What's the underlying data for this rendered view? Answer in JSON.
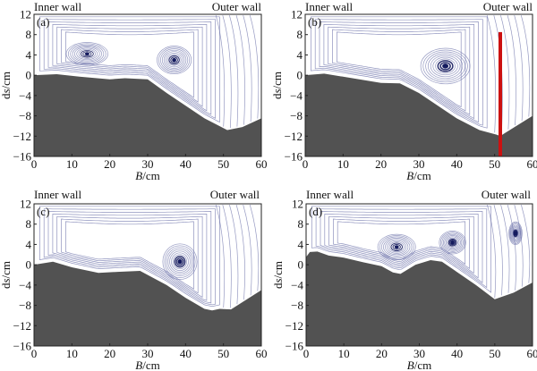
{
  "chart_data": [
    {
      "type": "streamline",
      "panel_label": "(a)",
      "inner_wall_label": "Inner wall",
      "outer_wall_label": "Outer wall",
      "xlabel_italic": "B",
      "xlabel_unit": "/cm",
      "ylabel_italic": "s",
      "ylabel_prefix": "d",
      "ylabel_unit": "/cm",
      "xlim": [
        0,
        60
      ],
      "ylim": [
        -16,
        12
      ],
      "xticks": [
        "0",
        "10",
        "20",
        "30",
        "40",
        "50",
        "60"
      ],
      "yticks": [
        "12",
        "8",
        "4",
        "0",
        "−4",
        "−8",
        "−12",
        "−16"
      ],
      "bed_profile": [
        [
          0,
          0
        ],
        [
          6,
          0.2
        ],
        [
          12,
          -0.3
        ],
        [
          20,
          -0.8
        ],
        [
          24,
          -0.6
        ],
        [
          30,
          -0.8
        ],
        [
          35,
          -3.5
        ],
        [
          45,
          -8.5
        ],
        [
          51,
          -10.8
        ],
        [
          55,
          -10.2
        ],
        [
          60,
          -8.5
        ]
      ],
      "vortices": [
        {
          "x": 14,
          "y": 4.2,
          "rx": 11,
          "ry": 4.5,
          "strength": 0.4
        },
        {
          "x": 37,
          "y": 3.0,
          "rx": 9,
          "ry": 5.5,
          "strength": 0.6
        }
      ],
      "guide_wall": null
    },
    {
      "type": "streamline",
      "panel_label": "(b)",
      "inner_wall_label": "Inner wall",
      "outer_wall_label": "Outer wall",
      "xlabel_italic": "B",
      "xlabel_unit": "/cm",
      "ylabel_italic": "s",
      "ylabel_prefix": "d",
      "ylabel_unit": "/cm",
      "xlim": [
        0,
        60
      ],
      "ylim": [
        -16,
        12
      ],
      "xticks": [
        "0",
        "10",
        "20",
        "30",
        "40",
        "50",
        "60"
      ],
      "yticks": [
        "12",
        "8",
        "4",
        "0",
        "−4",
        "−8",
        "−12",
        "−16"
      ],
      "bed_profile": [
        [
          0,
          0
        ],
        [
          5,
          0.3
        ],
        [
          10,
          -0.3
        ],
        [
          20,
          -1.5
        ],
        [
          25,
          -1.6
        ],
        [
          30,
          -3.5
        ],
        [
          40,
          -8.5
        ],
        [
          46,
          -10.8
        ],
        [
          50.5,
          -11.7
        ],
        [
          51.5,
          -12
        ],
        [
          52.5,
          -11.5
        ],
        [
          60,
          -8
        ]
      ],
      "vortices": [
        {
          "x": 37,
          "y": 1.8,
          "rx": 13,
          "ry": 7,
          "strength": 1.0
        }
      ],
      "guide_wall": {
        "x": 51.5,
        "top": 8.5,
        "color": "#cc1111"
      }
    },
    {
      "type": "streamline",
      "panel_label": "(c)",
      "inner_wall_label": "Inner wall",
      "outer_wall_label": "Outer wall",
      "xlabel_italic": "B",
      "xlabel_unit": "/cm",
      "ylabel_italic": "s",
      "ylabel_prefix": "d",
      "ylabel_unit": "/cm",
      "xlim": [
        0,
        60
      ],
      "ylim": [
        -16,
        12
      ],
      "xticks": [
        "0",
        "10",
        "20",
        "30",
        "40",
        "50",
        "60"
      ],
      "yticks": [
        "12",
        "8",
        "4",
        "0",
        "−4",
        "−8",
        "−12",
        "−16"
      ],
      "bed_profile": [
        [
          0,
          0
        ],
        [
          5,
          0.6
        ],
        [
          10,
          -0.5
        ],
        [
          17,
          -1.6
        ],
        [
          22,
          -1.4
        ],
        [
          28,
          -1.2
        ],
        [
          35,
          -4
        ],
        [
          40,
          -6.5
        ],
        [
          45,
          -8.7
        ],
        [
          47,
          -9
        ],
        [
          49,
          -8.7
        ],
        [
          52,
          -8.8
        ],
        [
          60,
          -5
        ]
      ],
      "vortices": [
        {
          "x": 38.5,
          "y": 0.6,
          "rx": 9,
          "ry": 7,
          "strength": 0.9
        }
      ],
      "guide_wall": null
    },
    {
      "type": "streamline",
      "panel_label": "(d)",
      "inner_wall_label": "Inner wall",
      "outer_wall_label": "Outer wall",
      "xlabel_italic": "B",
      "xlabel_unit": "/cm",
      "ylabel_italic": "s",
      "ylabel_prefix": "d",
      "ylabel_unit": "/cm",
      "xlim": [
        0,
        60
      ],
      "ylim": [
        -16,
        12
      ],
      "xticks": [
        "0",
        "10",
        "20",
        "30",
        "40",
        "50",
        "60"
      ],
      "yticks": [
        "12",
        "8",
        "4",
        "0",
        "−4",
        "−8",
        "−12",
        "−16"
      ],
      "bed_profile": [
        [
          0,
          1.5
        ],
        [
          1,
          2.5
        ],
        [
          3,
          2.6
        ],
        [
          6,
          1.8
        ],
        [
          10,
          1.4
        ],
        [
          15,
          0.5
        ],
        [
          20,
          -0.3
        ],
        [
          23,
          -1.5
        ],
        [
          25,
          -1.8
        ],
        [
          29,
          0
        ],
        [
          33,
          0.9
        ],
        [
          36,
          0.6
        ],
        [
          45,
          -4
        ],
        [
          50,
          -6.8
        ],
        [
          55,
          -5.5
        ],
        [
          60,
          -3.5
        ]
      ],
      "vortices": [
        {
          "x": 24,
          "y": 3.5,
          "rx": 10,
          "ry": 5,
          "strength": 0.5
        },
        {
          "x": 38.8,
          "y": 4.4,
          "rx": 7,
          "ry": 4.5,
          "strength": 0.7
        },
        {
          "x": 55.5,
          "y": 6.2,
          "rx": 3.5,
          "ry": 4.5,
          "strength": 0.8
        }
      ],
      "guide_wall": null
    }
  ],
  "colors": {
    "bed": "#525252",
    "streamline": "#6a6fa8",
    "vortex_core": "#141a5e",
    "guide_wall": "#cc1111"
  }
}
